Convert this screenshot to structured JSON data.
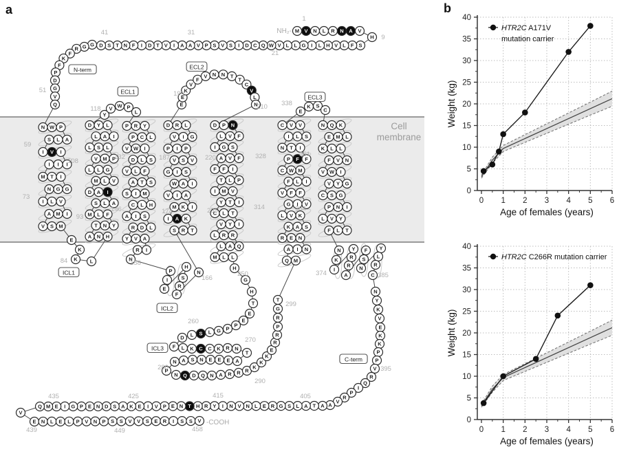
{
  "figure": {
    "panel_a_letter": "a",
    "panel_b_letter": "b"
  },
  "panel_a": {
    "description": "HTR2C receptor snake plot with mutated residues highlighted",
    "protein_sequence": "MVNLRNAVHSFLVHLIGLLVWQCDISVSPVAAIVTDIFNTSDGGRFKFPDGVQNWPALSIVIIIIMTIGGNILVIMAVSMEKKLHNATNYFLMSLAIADMLVGLLVMPLSLLAILYDYVWPLPRYLCPVWISLDVLFSTASIMHLCAISLDRYVAIRNPIEHSRFNSRTKAIMKIAIVWAISIGVSVPIPVIGLRDEEKVFVNNTTCVLNDPNFVLIGSFVAFFIPLTIMVITYCLTIYVLRRQALMLLHGHTEEPPGLSLDFLKCCKRNTAEEENSANPNQDQNARRRKKKERRPRGTMQAINNERKASKVLGIVFFVFLIMWCPFFITNILSVVCEKSCNQKLMEKLLNVFVWIGYVCSGINPLVYTLFNKIYRRAFSNYLRCNYKVEKKPPVRQIPRVAATALSGRELNVNIYRHTNEPVIEKASDNEPGIEMQVENLELPVNPSSVVSERISSV",
    "nh2_label": "NH₂-",
    "cooh_label": "-COOH",
    "membrane_label_line1": "Cell",
    "membrane_label_line2": "membrane",
    "region_labels": [
      "N-term",
      "ECL1",
      "ECL2",
      "ECL3",
      "ICL1",
      "ICL2",
      "ICL3",
      "C-term"
    ],
    "mutated_positions": [
      2,
      6,
      7,
      61,
      97,
      171,
      208,
      213,
      260,
      266,
      282,
      327,
      419
    ],
    "residue_numbers": [
      1,
      9,
      21,
      31,
      41,
      51,
      59,
      73,
      84,
      93,
      108,
      118,
      132,
      146,
      158,
      166,
      174,
      187,
      199,
      210,
      220,
      235,
      250,
      260,
      270,
      280,
      290,
      299,
      314,
      328,
      338,
      351,
      364,
      374,
      385,
      395,
      405,
      415,
      425,
      435,
      439,
      449,
      458
    ],
    "colors": {
      "membrane_fill": "#ebebeb",
      "membrane_edge": "#9a9a9a",
      "residue_stroke": "#2a2a2a",
      "mutation_fill": "#0d0d0d",
      "number_color": "#b0b0b0",
      "ribbon_color": "#c9c9c9"
    }
  },
  "chart_data": [
    {
      "type": "line",
      "legend_lines": [
        {
          "italic": "HTR2C",
          "text": " A171V"
        },
        {
          "italic": "",
          "text": "mutation carrier"
        }
      ],
      "xlabel": "Age of females (years)",
      "ylabel": "Weight (kg)",
      "xlim": [
        0,
        6
      ],
      "ylim": [
        0,
        40
      ],
      "xticks": [
        0,
        1,
        2,
        3,
        4,
        5,
        6
      ],
      "yticks": [
        0,
        5,
        10,
        15,
        20,
        25,
        30,
        35,
        40
      ],
      "grid": "dotted",
      "legend_position": "top-left",
      "points": [
        [
          0.1,
          4.5
        ],
        [
          0.5,
          6
        ],
        [
          0.8,
          9
        ],
        [
          1,
          13
        ],
        [
          2,
          18
        ],
        [
          4,
          32
        ],
        [
          5,
          38
        ]
      ],
      "reference_band": {
        "x": [
          0,
          0.5,
          1,
          2,
          3,
          4,
          5,
          6
        ],
        "center": [
          3.2,
          7,
          9.7,
          12,
          14.3,
          16.6,
          18.9,
          21.2
        ],
        "halfwidth": [
          0.35,
          0.7,
          0.7,
          0.9,
          1.1,
          1.3,
          1.5,
          1.75
        ]
      }
    },
    {
      "type": "line",
      "legend_lines": [
        {
          "italic": "HTR2C",
          "text": " C266R mutation carrier"
        }
      ],
      "xlabel": "Age of females (years)",
      "ylabel": "Weight (kg)",
      "xlim": [
        0,
        6
      ],
      "ylim": [
        0,
        40
      ],
      "xticks": [
        0,
        1,
        2,
        3,
        4,
        5,
        6
      ],
      "yticks": [
        0,
        5,
        10,
        15,
        20,
        25,
        30,
        35,
        40
      ],
      "grid": "dotted",
      "legend_position": "top-left",
      "points": [
        [
          0.1,
          3.8
        ],
        [
          1,
          10
        ],
        [
          2.5,
          14
        ],
        [
          3.5,
          24
        ],
        [
          5,
          31
        ]
      ],
      "reference_band": {
        "x": [
          0,
          0.5,
          1,
          2,
          3,
          4,
          5,
          6
        ],
        "center": [
          3.2,
          7,
          9.7,
          12,
          14.3,
          16.6,
          18.9,
          21.2
        ],
        "halfwidth": [
          0.35,
          0.7,
          0.7,
          0.9,
          1.1,
          1.3,
          1.5,
          1.75
        ]
      }
    }
  ]
}
